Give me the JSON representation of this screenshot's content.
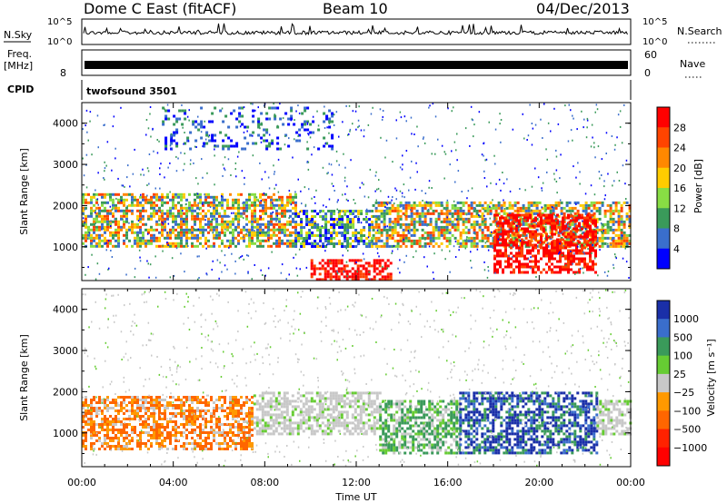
{
  "header": {
    "title": "Dome C East (fitACF)",
    "beam": "Beam 10",
    "date": "04/Dec/2013"
  },
  "noise_panel": {
    "left_label": "N.Sky",
    "right_label": "N.Search",
    "left_ticks": [
      "10^5",
      "10^0"
    ],
    "right_ticks": [
      "10^5",
      "10^0"
    ]
  },
  "freq_panel": {
    "left_label": "Freq.",
    "left_unit": "[MHz]",
    "right_label": "Nave",
    "left_ticks": [
      "",
      "8"
    ],
    "right_ticks": [
      "60",
      "0"
    ]
  },
  "cpid": {
    "label": "CPID",
    "value": "twofsound 3501"
  },
  "chart_data": [
    {
      "type": "heatmap",
      "name": "power",
      "ylabel": "Slant Range [km]",
      "ylim": [
        180,
        4500
      ],
      "yticks": [
        "4000",
        "3000",
        "2000",
        "1000"
      ],
      "colorbar_label": "Power [dB]",
      "colorbar_ticks": [
        "28",
        "24",
        "20",
        "16",
        "12",
        "8",
        "4"
      ],
      "colorbar_colors": [
        "#ff0000",
        "#ff4400",
        "#ff8800",
        "#ffcc00",
        "#88dd44",
        "#3a9a5a",
        "#3a6ecc",
        "#0000ff"
      ],
      "echo_bands": [
        {
          "t0": 0.0,
          "t1": 9.3,
          "r0": 1000,
          "r1": 2300,
          "level": "high"
        },
        {
          "t0": 9.3,
          "t1": 12.7,
          "r0": 1000,
          "r1": 1900,
          "level": "medium"
        },
        {
          "t0": 12.7,
          "t1": 24.0,
          "r0": 1000,
          "r1": 2100,
          "level": "high"
        },
        {
          "t0": 10.0,
          "t1": 13.5,
          "r0": 200,
          "r1": 700,
          "level": "very-high"
        },
        {
          "t0": 18.0,
          "t1": 22.5,
          "r0": 400,
          "r1": 1800,
          "level": "very-high"
        },
        {
          "t0": 3.5,
          "t1": 11.0,
          "r0": 3400,
          "r1": 4400,
          "level": "low"
        }
      ]
    },
    {
      "type": "heatmap",
      "name": "velocity",
      "xlabel": "Time UT",
      "ylabel": "Slant Range [km]",
      "ylim": [
        180,
        4500
      ],
      "yticks": [
        "4000",
        "3000",
        "2000",
        "1000"
      ],
      "xticks": [
        "00:00",
        "04:00",
        "08:00",
        "12:00",
        "16:00",
        "20:00",
        "00:00"
      ],
      "xlim_hours": [
        0,
        24
      ],
      "colorbar_label": "Velocity [m s⁻¹]",
      "colorbar_ticks": [
        "1000",
        "500",
        "100",
        "25",
        "−25",
        "−100",
        "−500",
        "−1000"
      ],
      "colorbar_colors": [
        "#1a2fa8",
        "#3a6ecc",
        "#3a9a5a",
        "#66cc33",
        "#c8c8c8",
        "#ff9900",
        "#ff6600",
        "#ff2200",
        "#ff0000"
      ],
      "echo_bands": [
        {
          "t0": 0.0,
          "t1": 7.5,
          "r0": 600,
          "r1": 1900,
          "direction": "negative"
        },
        {
          "t0": 7.5,
          "t1": 13.0,
          "r0": 1000,
          "r1": 2000,
          "direction": "near-zero"
        },
        {
          "t0": 13.0,
          "t1": 16.5,
          "r0": 500,
          "r1": 1800,
          "direction": "positive"
        },
        {
          "t0": 16.5,
          "t1": 22.5,
          "r0": 500,
          "r1": 2000,
          "direction": "strong-positive"
        },
        {
          "t0": 22.5,
          "t1": 24.0,
          "r0": 1000,
          "r1": 1800,
          "direction": "near-zero"
        }
      ]
    }
  ]
}
